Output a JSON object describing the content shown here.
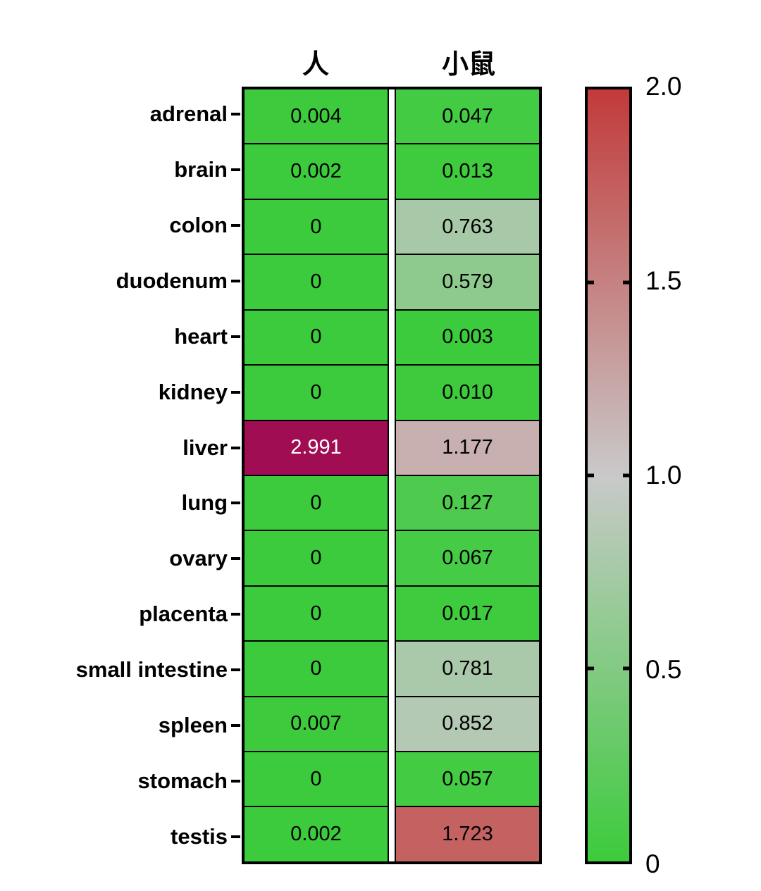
{
  "chart_data": {
    "type": "heatmap",
    "title": "",
    "categories": [
      "adrenal",
      "brain",
      "colon",
      "duodenum",
      "heart",
      "kidney",
      "liver",
      "lung",
      "ovary",
      "placenta",
      "small intestine",
      "spleen",
      "stomach",
      "testis"
    ],
    "series": [
      {
        "name": "人",
        "values": [
          0.004,
          0.002,
          0,
          0,
          0,
          0,
          2.991,
          0,
          0,
          0,
          0,
          0.007,
          0,
          0.002
        ],
        "labels": [
          "0.004",
          "0.002",
          "0",
          "0",
          "0",
          "0",
          "2.991",
          "0",
          "0",
          "0",
          "0",
          "0.007",
          "0",
          "0.002"
        ]
      },
      {
        "name": "小鼠",
        "values": [
          0.047,
          0.013,
          0.763,
          0.579,
          0.003,
          0.01,
          1.177,
          0.127,
          0.067,
          0.017,
          0.781,
          0.852,
          0.057,
          1.723
        ],
        "labels": [
          "0.047",
          "0.013",
          "0.763",
          "0.579",
          "0.003",
          "0.010",
          "1.177",
          "0.127",
          "0.067",
          "0.017",
          "0.781",
          "0.852",
          "0.057",
          "1.723"
        ]
      }
    ],
    "colorbar": {
      "min": 0,
      "max": 2.0,
      "midpoint": 1.0,
      "tick_labels": [
        "2.0",
        "1.5",
        "1.0",
        "0.5",
        "0"
      ],
      "tick_values": [
        2.0,
        1.5,
        1.0,
        0.5,
        0
      ],
      "position": "right"
    },
    "colormap": {
      "low": "#3CCB3C",
      "mid": "#C9C9C9",
      "high": "#C23A3A",
      "over": "#A10D53",
      "text": "#000000",
      "over_text": "#FFFFFF"
    },
    "grid": "black cell borders",
    "legend_position": "right colorbar"
  }
}
